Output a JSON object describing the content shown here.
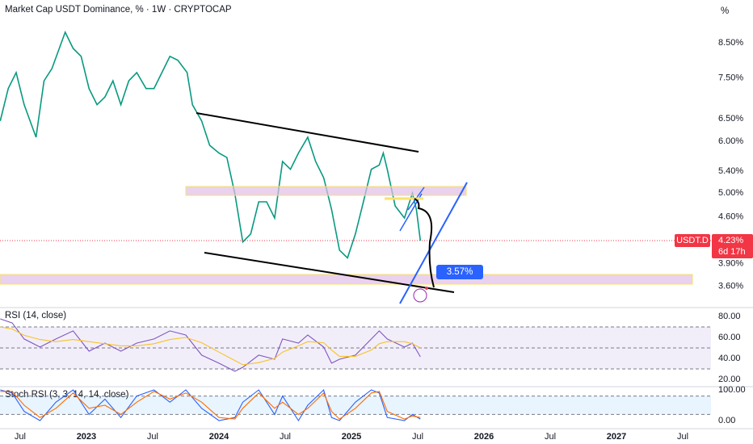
{
  "chart_data": [
    {
      "type": "line",
      "title": "Market Cap USDT Dominance, % · 1W · CRYPTOCAP",
      "unit": "%",
      "log_scale": true,
      "x": [
        2022.35,
        2022.41,
        2022.47,
        2022.53,
        2022.62,
        2022.68,
        2022.74,
        2022.84,
        2022.9,
        2022.96,
        2023.02,
        2023.08,
        2023.14,
        2023.2,
        2023.26,
        2023.32,
        2023.38,
        2023.45,
        2023.51,
        2023.57,
        2023.63,
        2023.69,
        2023.76,
        2023.8,
        2023.87,
        2023.93,
        2024.0,
        2024.06,
        2024.12,
        2024.18,
        2024.24,
        2024.3,
        2024.36,
        2024.42,
        2024.48,
        2024.54,
        2024.6,
        2024.67,
        2024.73,
        2024.79,
        2024.85,
        2024.91,
        2024.97,
        2025.03,
        2025.09,
        2025.15,
        2025.21,
        2025.24,
        2025.27,
        2025.33,
        2025.4,
        2025.46,
        2025.49,
        2025.52
      ],
      "series": [
        {
          "name": "USDT.D",
          "color": "#089981",
          "values": [
            6.45,
            7.23,
            7.65,
            6.83,
            6.09,
            7.43,
            7.76,
            8.82,
            8.33,
            8.1,
            7.23,
            6.83,
            7.02,
            7.43,
            6.83,
            7.43,
            7.65,
            7.23,
            7.23,
            7.65,
            8.1,
            7.99,
            7.65,
            6.83,
            6.45,
            5.92,
            5.76,
            5.67,
            4.99,
            4.21,
            4.33,
            4.85,
            4.85,
            4.58,
            5.59,
            5.44,
            5.76,
            6.09,
            5.59,
            5.28,
            4.72,
            4.09,
            3.98,
            4.33,
            4.85,
            5.44,
            5.52,
            5.76,
            5.44,
            4.78,
            4.58,
            5.0,
            4.72,
            4.23
          ]
        }
      ],
      "last_value": {
        "value": 4.23,
        "label": "4.23%"
      },
      "countdown": "6d 17h",
      "annotation": {
        "value": 3.57,
        "label": "3.57%"
      },
      "xlim": [
        2022.348,
        2027.713
      ],
      "xticks": [
        {
          "value": 2022.5,
          "label": "Jul"
        },
        2023,
        {
          "value": 2023.5,
          "label": "Jul"
        },
        2024,
        {
          "value": 2024.5,
          "label": "Jul"
        },
        2025,
        {
          "value": 2025.5,
          "label": "Jul"
        },
        2026,
        {
          "value": 2026.5,
          "label": "Jul"
        },
        2027,
        {
          "value": 2027.5,
          "label": "Jul"
        }
      ],
      "ylim": [
        3.35,
        9.88
      ],
      "yticks": [
        {
          "value": 8.5,
          "label": "8.50%"
        },
        {
          "value": 7.5,
          "label": "7.50%"
        },
        {
          "value": 6.5,
          "label": "6.50%"
        },
        {
          "value": 6.0,
          "label": "6.00%"
        },
        {
          "value": 5.4,
          "label": "5.40%"
        },
        {
          "value": 5.0,
          "label": "5.00%"
        },
        {
          "value": 4.6,
          "label": "4.60%"
        },
        {
          "value": 3.9,
          "label": "3.90%"
        },
        {
          "value": 3.6,
          "label": "3.60%"
        }
      ]
    },
    {
      "type": "line",
      "title": "RSI (14, close)",
      "x": [
        2022.35,
        2022.44,
        2022.53,
        2022.65,
        2022.77,
        2022.9,
        2023.02,
        2023.14,
        2023.26,
        2023.38,
        2023.51,
        2023.63,
        2023.75,
        2023.87,
        2024.0,
        2024.12,
        2024.18,
        2024.3,
        2024.42,
        2024.48,
        2024.6,
        2024.67,
        2024.79,
        2024.85,
        2024.91,
        2025.03,
        2025.15,
        2025.21,
        2025.27,
        2025.4,
        2025.46,
        2025.52
      ],
      "series": [
        {
          "color": "#7e57c2",
          "values": [
            77.7,
            73.8,
            58.5,
            50.8,
            58.5,
            66.2,
            46.9,
            54.6,
            46.9,
            54.6,
            58.5,
            66.2,
            62.3,
            43.1,
            35.4,
            27.7,
            31.5,
            43.1,
            39.2,
            58.5,
            54.6,
            62.3,
            50.8,
            35.4,
            39.2,
            43.1,
            58.5,
            66.2,
            58.5,
            50.8,
            54.6,
            41.5
          ]
        },
        {
          "color": "#f7c325",
          "values": [
            70,
            68,
            62,
            58,
            56,
            58,
            56,
            54,
            52,
            52,
            54,
            58,
            60,
            55,
            46,
            38,
            34,
            36,
            40,
            46,
            52,
            56,
            55,
            48,
            42,
            42,
            48,
            54,
            56,
            56,
            54,
            50
          ]
        }
      ],
      "levels": [
        70,
        50,
        30
      ],
      "ylim": [
        13.8,
        87.7
      ],
      "yticks": [
        {
          "value": 80,
          "label": "80.00"
        },
        {
          "value": 60,
          "label": "60.00"
        },
        {
          "value": 40,
          "label": "40.00"
        },
        {
          "value": 20,
          "label": "20.00"
        }
      ]
    },
    {
      "type": "line",
      "title": "Stoch RSI (3, 3, 14, 14, close)",
      "x": [
        2022.35,
        2022.44,
        2022.53,
        2022.65,
        2022.77,
        2022.9,
        2023.02,
        2023.14,
        2023.26,
        2023.38,
        2023.51,
        2023.63,
        2023.75,
        2023.87,
        2024.0,
        2024.12,
        2024.18,
        2024.3,
        2024.42,
        2024.48,
        2024.6,
        2024.67,
        2024.79,
        2024.85,
        2024.91,
        2025.03,
        2025.15,
        2025.21,
        2025.27,
        2025.4,
        2025.46,
        2025.52
      ],
      "series": [
        {
          "color": "#2962ff",
          "values": [
            100,
            90,
            30,
            0,
            60,
            100,
            20,
            70,
            10,
            80,
            100,
            60,
            100,
            40,
            0,
            10,
            60,
            100,
            20,
            80,
            0,
            50,
            100,
            10,
            0,
            60,
            100,
            90,
            10,
            0,
            20,
            5
          ]
        },
        {
          "color": "#ff6d00",
          "values": [
            95,
            95,
            50,
            10,
            40,
            90,
            40,
            50,
            20,
            60,
            95,
            70,
            90,
            60,
            10,
            5,
            40,
            90,
            40,
            60,
            20,
            40,
            90,
            30,
            5,
            40,
            90,
            95,
            30,
            5,
            15,
            10
          ]
        }
      ],
      "levels": [
        80,
        20
      ],
      "ylim": [
        -23.7,
        107.9
      ],
      "yticks": [
        {
          "value": 100,
          "label": "100.00"
        },
        {
          "value": 0,
          "label": "0.00"
        }
      ]
    }
  ]
}
